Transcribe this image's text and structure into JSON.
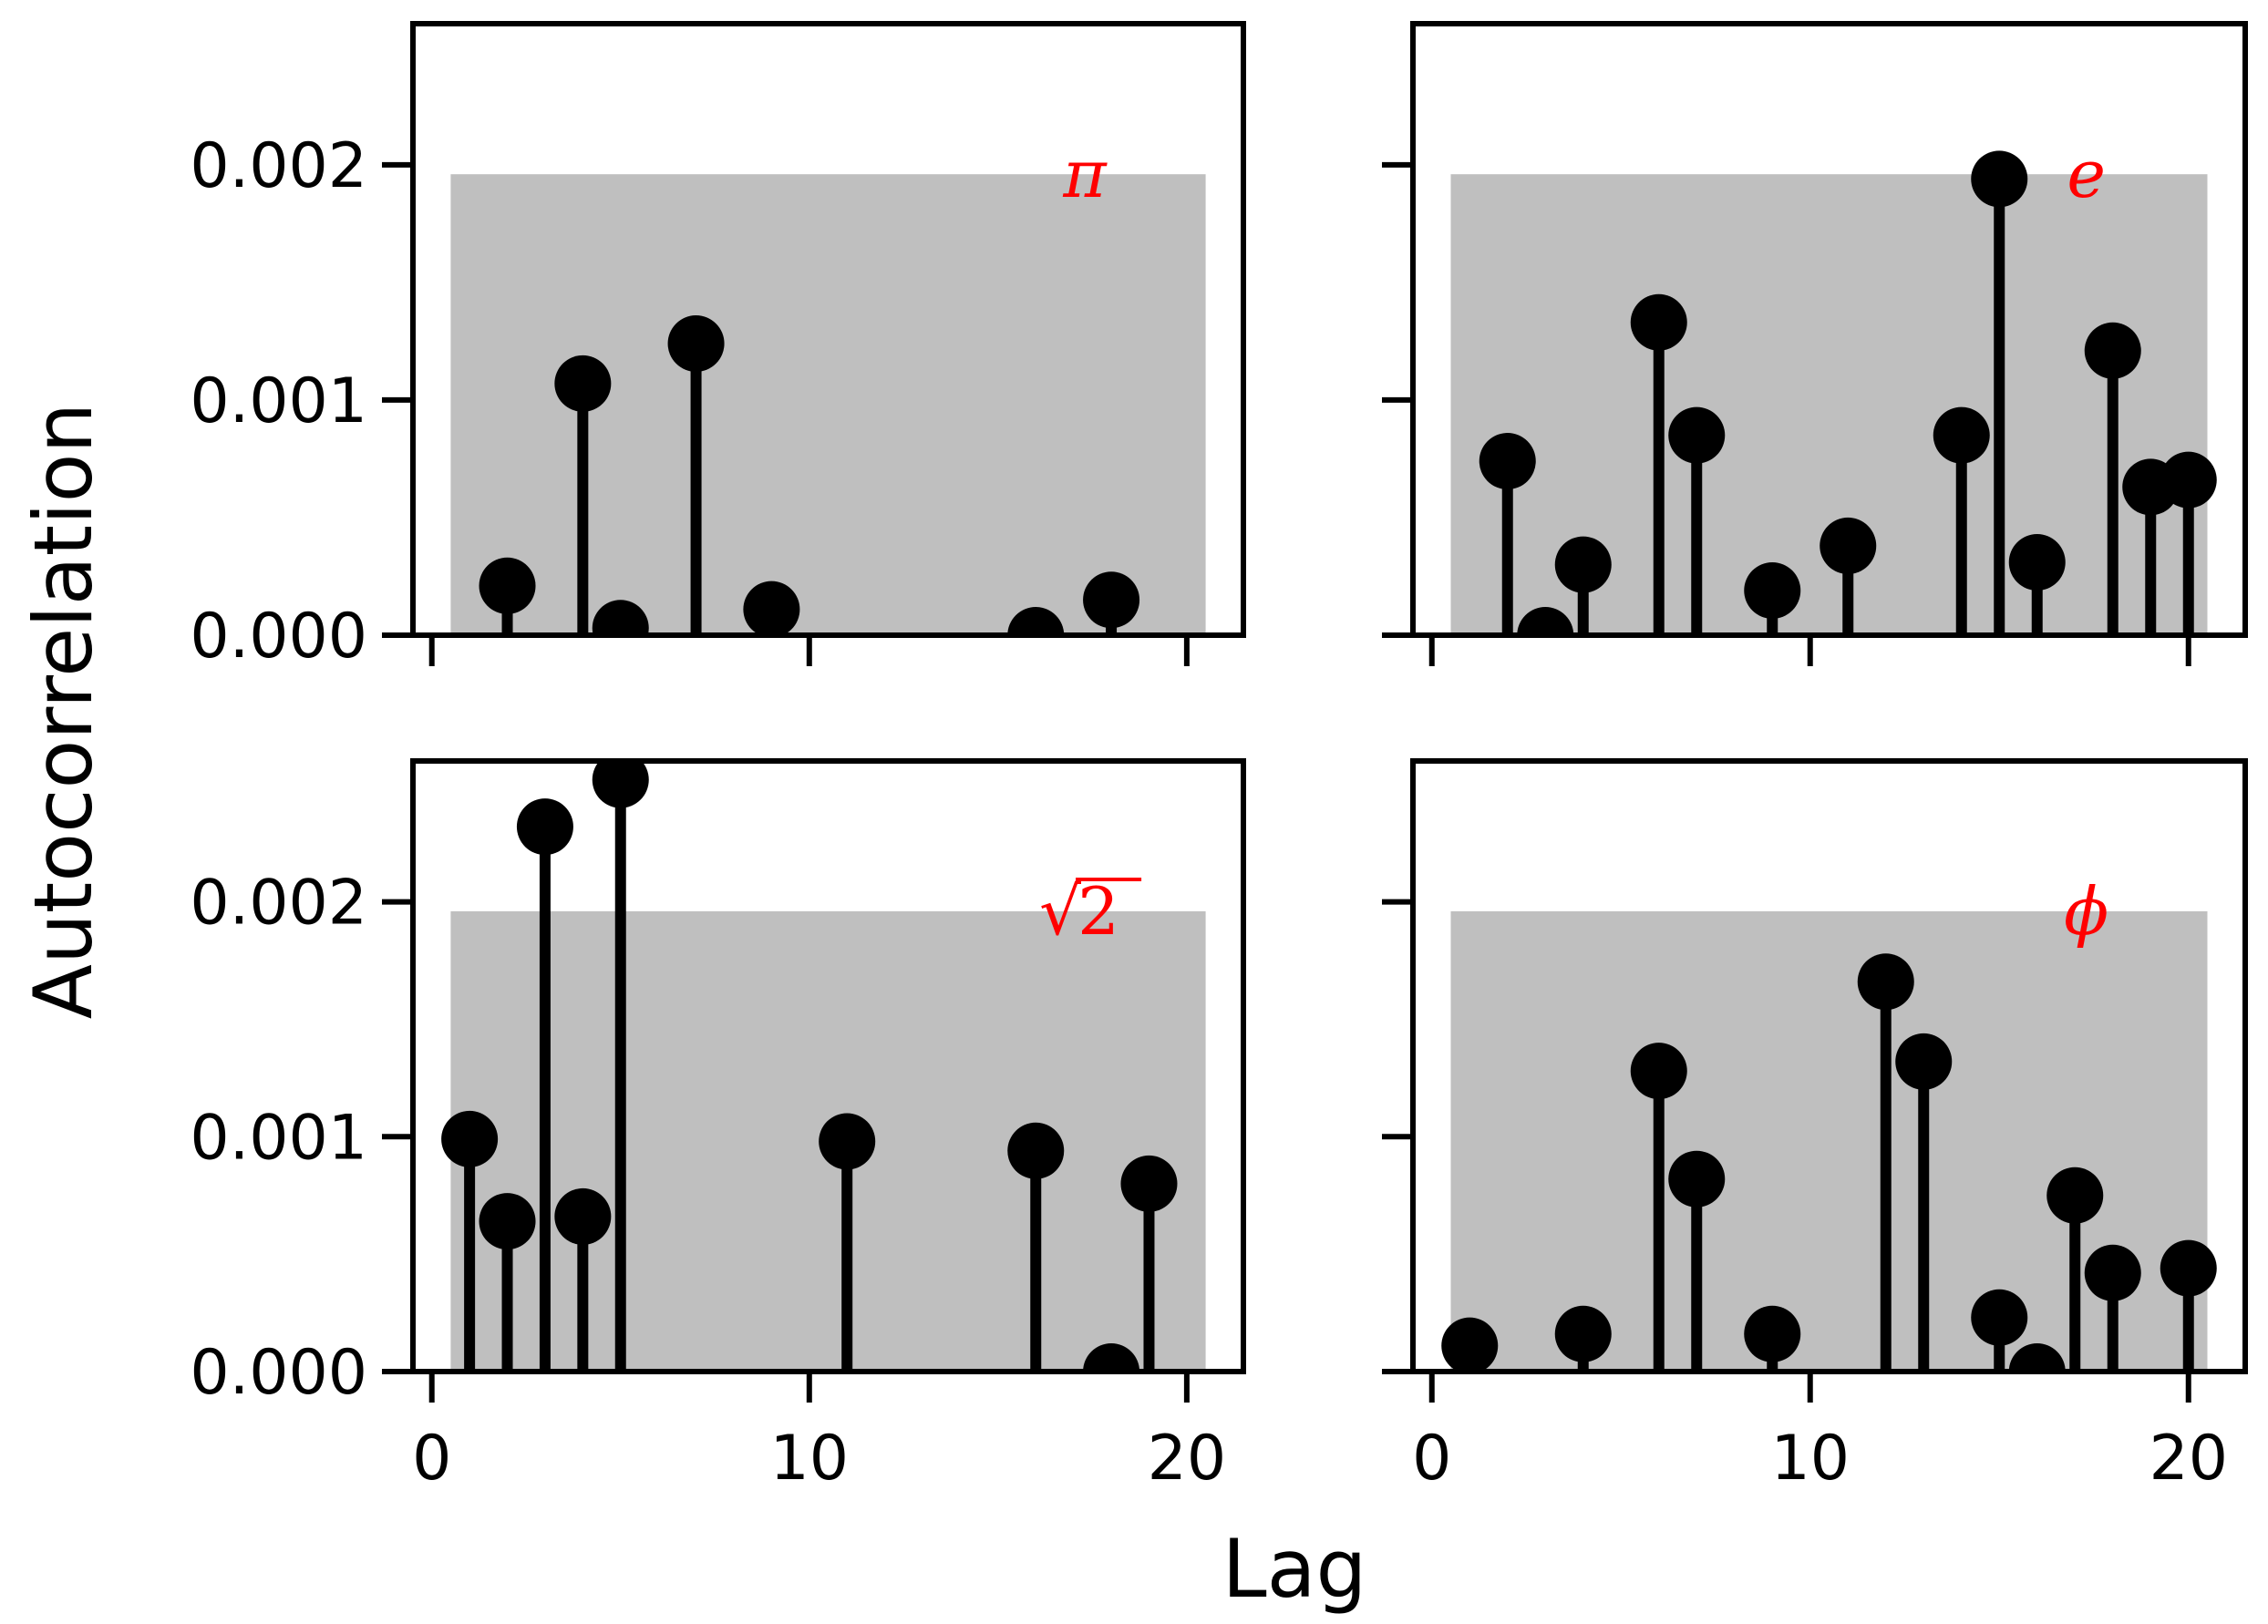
{
  "figure": {
    "ylabel": "Autocorrelation",
    "xlabel": "Lag"
  },
  "colors": {
    "marker": "#000000",
    "band": "#bfbfbf",
    "label": "#ff0000"
  },
  "chart_data": [
    {
      "type": "stem",
      "label": "π",
      "xlim": [
        -0.5,
        21.5
      ],
      "ylim": [
        0,
        0.0026
      ],
      "xticks": [
        "0",
        "10",
        "20"
      ],
      "yticks": [
        "0.000",
        "0.001",
        "0.002"
      ],
      "band": {
        "x": [
          0.5,
          20.5
        ],
        "y": [
          0,
          0.00196
        ]
      },
      "x": [
        2,
        4,
        5,
        7,
        9,
        16,
        18
      ],
      "y": [
        0.00021,
        0.00107,
        3e-05,
        0.00124,
        0.00011,
        0.0,
        0.00015
      ]
    },
    {
      "type": "stem",
      "label": "e",
      "xlim": [
        -0.5,
        21.5
      ],
      "ylim": [
        0,
        0.0026
      ],
      "xticks": [
        "0",
        "10",
        "20"
      ],
      "yticks": [
        "0.000",
        "0.001",
        "0.002"
      ],
      "band": {
        "x": [
          0.5,
          20.5
        ],
        "y": [
          0,
          0.00196
        ]
      },
      "x": [
        2,
        3,
        4,
        6,
        7,
        9,
        11,
        14,
        15,
        16,
        18,
        19,
        20
      ],
      "y": [
        0.00074,
        0.0,
        0.0003,
        0.00133,
        0.00085,
        0.00019,
        0.00038,
        0.00085,
        0.00194,
        0.00031,
        0.00121,
        0.00063,
        0.00066
      ]
    },
    {
      "type": "stem",
      "label": "√2",
      "label_radical": "√",
      "label_radicand": "2",
      "xlim": [
        -0.5,
        21.5
      ],
      "ylim": [
        0,
        0.0026
      ],
      "xticks": [
        "0",
        "10",
        "20"
      ],
      "yticks": [
        "0.000",
        "0.001",
        "0.002"
      ],
      "band": {
        "x": [
          0.5,
          20.5
        ],
        "y": [
          0,
          0.00196
        ]
      },
      "x": [
        1,
        2,
        3,
        4,
        5,
        11,
        16,
        18,
        19
      ],
      "y": [
        0.00099,
        0.00064,
        0.00232,
        0.00066,
        0.00252,
        0.00098,
        0.00094,
        0.0,
        0.0008
      ]
    },
    {
      "type": "stem",
      "label": "ϕ",
      "xlim": [
        -0.5,
        21.5
      ],
      "ylim": [
        0,
        0.0026
      ],
      "xticks": [
        "0",
        "10",
        "20"
      ],
      "yticks": [
        "0.000",
        "0.001",
        "0.002"
      ],
      "band": {
        "x": [
          0.5,
          20.5
        ],
        "y": [
          0,
          0.00196
        ]
      },
      "x": [
        1,
        4,
        6,
        7,
        9,
        12,
        13,
        15,
        16,
        17,
        18,
        20
      ],
      "y": [
        0.00011,
        0.00016,
        0.00128,
        0.00082,
        0.00016,
        0.00166,
        0.00132,
        0.00023,
        0.0,
        0.00075,
        0.00042,
        0.00044
      ]
    }
  ]
}
